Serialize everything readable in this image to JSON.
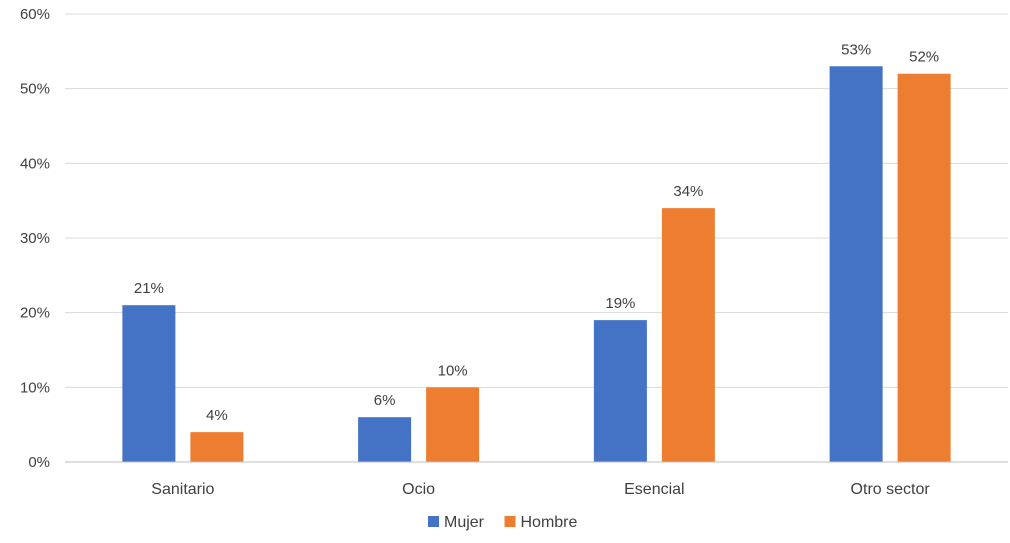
{
  "chart_data": {
    "type": "bar",
    "categories": [
      "Sanitario",
      "Ocio",
      "Esencial",
      "Otro sector"
    ],
    "series": [
      {
        "name": "Mujer",
        "values": [
          21,
          6,
          19,
          53
        ],
        "labels": [
          "21%",
          "6%",
          "19%",
          "53%"
        ],
        "color": "#4472C4"
      },
      {
        "name": "Hombre",
        "values": [
          4,
          10,
          34,
          52
        ],
        "labels": [
          "4%",
          "10%",
          "34%",
          "52%"
        ],
        "color": "#ED7D31"
      }
    ],
    "yticks": [
      "0%",
      "10%",
      "20%",
      "30%",
      "40%",
      "50%",
      "60%"
    ],
    "ylim": [
      0,
      60
    ],
    "grid": true,
    "legend_position": "bottom",
    "gridline_color": "#D9D9D9",
    "axis_color": "#BFBFBF"
  }
}
